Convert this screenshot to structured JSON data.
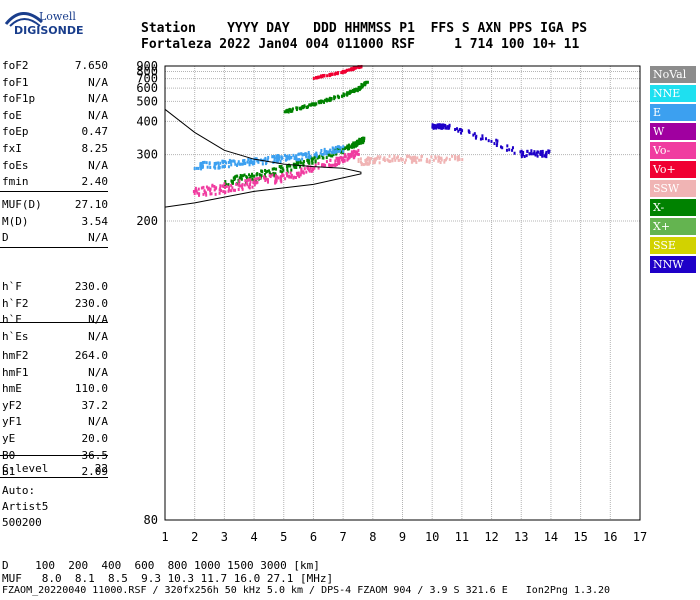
{
  "logo": {
    "brand_top": "Lowell",
    "brand_bottom": "DIGISONDE"
  },
  "header": {
    "labels": "Station    YYYY DAY   DDD HHMMSS P1  FFS S AXN PPS IGA PS",
    "values": "Fortaleza 2022 Jan04 004 011000 RSF     1 714 100 10+ 11"
  },
  "params_group1": [
    {
      "name": "foF2",
      "value": "7.650"
    },
    {
      "name": "foF1",
      "value": "N/A"
    },
    {
      "name": "foF1p",
      "value": "N/A"
    },
    {
      "name": "foE",
      "value": "N/A"
    },
    {
      "name": "foEp",
      "value": "0.47"
    },
    {
      "name": "fxI",
      "value": "8.25"
    },
    {
      "name": "foEs",
      "value": "N/A"
    },
    {
      "name": "fmin",
      "value": "2.40"
    }
  ],
  "params_group2": [
    {
      "name": "MUF(D)",
      "value": "27.10"
    },
    {
      "name": "M(D)",
      "value": "3.54"
    },
    {
      "name": "D",
      "value": "N/A"
    }
  ],
  "params_group3": [
    {
      "name": "h`F",
      "value": "230.0"
    },
    {
      "name": "h`F2",
      "value": "230.0"
    },
    {
      "name": "h`E",
      "value": "N/A"
    },
    {
      "name": "h`Es",
      "value": "N/A"
    }
  ],
  "params_group4": [
    {
      "name": "hmF2",
      "value": "264.0"
    },
    {
      "name": "hmF1",
      "value": "N/A"
    },
    {
      "name": "hmE",
      "value": "110.0"
    },
    {
      "name": "yF2",
      "value": "37.2"
    },
    {
      "name": "yF1",
      "value": "N/A"
    },
    {
      "name": "yE",
      "value": "20.0"
    },
    {
      "name": "B0",
      "value": "36.5"
    },
    {
      "name": "B1",
      "value": "2.09"
    }
  ],
  "params_group5": [
    {
      "name": "C-level",
      "value": "22"
    }
  ],
  "auto": {
    "line1": "Auto:",
    "line2": "Artist5",
    "line3": "500200"
  },
  "legend": [
    {
      "label": "NoVal",
      "color": "#8c8c8c"
    },
    {
      "label": "NNE",
      "color": "#1ee0f0"
    },
    {
      "label": "E",
      "color": "#3ca0f0"
    },
    {
      "label": "W",
      "color": "#a000a0"
    },
    {
      "label": "Vo-",
      "color": "#f03ca0"
    },
    {
      "label": "Vo+",
      "color": "#f00032"
    },
    {
      "label": "SSW",
      "color": "#f0b4b4"
    },
    {
      "label": "X-",
      "color": "#008200"
    },
    {
      "label": "X+",
      "color": "#64b450"
    },
    {
      "label": "SSE",
      "color": "#d2d200"
    },
    {
      "label": "NNW",
      "color": "#1e00c8"
    }
  ],
  "footer": {
    "d_row": "D    100  200  400  600  800 1000 1500 3000 [km]",
    "muf_row": "MUF   8.0  8.1  8.5  9.3 10.3 11.7 16.0 27.1 [MHz]",
    "file_row": "FZAOM_20220040 11000.RSF / 320fx256h 50 kHz 5.0 km / DPS-4 FZAOM 904 / 3.9 S 321.6 E   Ion2Png 1.3.20"
  },
  "chart_data": {
    "type": "scatter",
    "x_ticks": [
      "1",
      "2",
      "3",
      "4",
      "5",
      "6",
      "7",
      "8",
      "9",
      "10",
      "11",
      "12",
      "13",
      "14",
      "15",
      "16",
      "17"
    ],
    "y_ticks": [
      "80",
      "200",
      "300",
      "400",
      "500",
      "600",
      "700",
      "800",
      "900"
    ],
    "xlim": [
      1,
      17
    ],
    "y_scale": "reciprocal",
    "ylim": [
      80,
      900
    ],
    "grid": true,
    "traces": [
      {
        "name": "X-",
        "points": [
          [
            3,
            248
          ],
          [
            4,
            257
          ],
          [
            5,
            270
          ],
          [
            6,
            288
          ],
          [
            7,
            312
          ],
          [
            7.5,
            330
          ],
          [
            7.7,
            340
          ]
        ]
      },
      {
        "name": "Vo-",
        "points": [
          [
            2,
            233
          ],
          [
            3,
            240
          ],
          [
            4,
            248
          ],
          [
            5,
            257
          ],
          [
            6,
            270
          ],
          [
            7,
            290
          ],
          [
            7.5,
            305
          ]
        ]
      },
      {
        "name": "E",
        "points": [
          [
            2,
            275
          ],
          [
            3,
            280
          ],
          [
            4,
            285
          ],
          [
            5,
            292
          ],
          [
            6,
            300
          ],
          [
            7,
            315
          ]
        ]
      },
      {
        "name": "X-",
        "points": [
          [
            5,
            440
          ],
          [
            6,
            480
          ],
          [
            7,
            540
          ],
          [
            7.5,
            590
          ],
          [
            7.8,
            660
          ]
        ]
      },
      {
        "name": "Vo+",
        "points": [
          [
            6,
            705
          ],
          [
            7,
            790
          ],
          [
            7.6,
            890
          ]
        ]
      },
      {
        "name": "NNW",
        "points": [
          [
            10,
            380
          ],
          [
            10.5,
            380
          ],
          [
            13,
            302
          ],
          [
            14,
            302
          ]
        ]
      },
      {
        "name": "SSW",
        "points": [
          [
            7.5,
            285
          ],
          [
            8.5,
            290
          ],
          [
            9.5,
            290
          ],
          [
            11,
            290
          ]
        ]
      }
    ],
    "profile_curve": [
      [
        1,
        455
      ],
      [
        2,
        360
      ],
      [
        3,
        310
      ],
      [
        4,
        290
      ],
      [
        5,
        280
      ],
      [
        6,
        275
      ],
      [
        7,
        272
      ],
      [
        7.6,
        265
      ],
      [
        7.6,
        262
      ],
      [
        6,
        245
      ],
      [
        4,
        235
      ],
      [
        2,
        220
      ],
      [
        1,
        215
      ]
    ]
  }
}
